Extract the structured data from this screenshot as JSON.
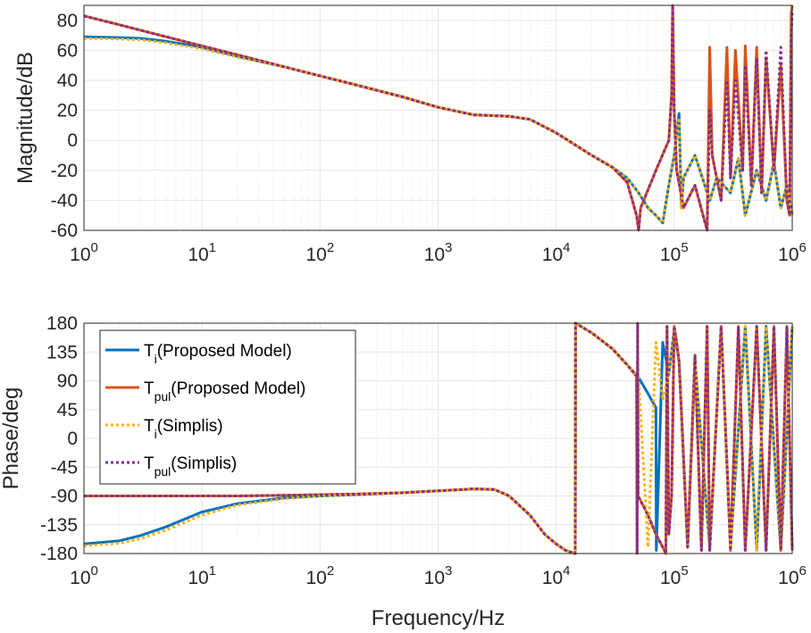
{
  "chart_data": [
    {
      "type": "line",
      "title": "",
      "xlabel": "",
      "ylabel": "Magnitude/dB",
      "xscale": "log",
      "xlim": [
        1,
        1000000
      ],
      "ylim": [
        -60,
        90
      ],
      "yticks": [
        "80",
        "60",
        "40",
        "20",
        "0",
        "-20",
        "-40",
        "-60"
      ],
      "grid": true,
      "series": [
        {
          "name": "Ti(Proposed Model)",
          "color": "#0072bd",
          "style": "solid",
          "x": [
            1,
            2,
            3,
            5,
            10,
            20,
            50,
            100,
            200,
            500,
            1000,
            2000,
            4000,
            6000,
            10000,
            20000,
            30000,
            40000,
            50000,
            60000,
            70000,
            80000,
            90000,
            100000,
            110000,
            115000,
            120000,
            150000,
            200000,
            230000,
            300000,
            350000,
            400000,
            500000,
            600000,
            700000,
            800000,
            900000,
            1000000
          ],
          "y": [
            69,
            68.5,
            68,
            66,
            62,
            56,
            49,
            43,
            37,
            29,
            22,
            17,
            16,
            14,
            5,
            -10,
            -18,
            -25,
            -35,
            -45,
            -50,
            -55,
            -30,
            -10,
            18,
            -45,
            -25,
            -10,
            -40,
            -25,
            -35,
            -12,
            -50,
            -20,
            -40,
            -15,
            -45,
            -30,
            -50
          ]
        },
        {
          "name": "Tpul(Proposed Model)",
          "color": "#d95319",
          "style": "solid",
          "x": [
            1,
            2,
            5,
            10,
            20,
            50,
            100,
            200,
            500,
            1000,
            2000,
            4000,
            6000,
            10000,
            20000,
            30000,
            40000,
            48000,
            50000,
            52000,
            70000,
            90000,
            95000,
            97000,
            100000,
            105000,
            120000,
            150000,
            190000,
            200000,
            210000,
            250000,
            280000,
            300000,
            330000,
            380000,
            400000,
            450000,
            500000,
            550000,
            600000,
            700000,
            800000,
            900000,
            950000,
            980000,
            1000000
          ],
          "y": [
            83,
            77,
            69,
            63,
            57,
            49,
            43,
            37,
            29,
            22,
            17,
            16,
            14,
            5,
            -10,
            -18,
            -28,
            -50,
            -60,
            -45,
            -20,
            0,
            30,
            90,
            20,
            -20,
            -45,
            -30,
            -60,
            62,
            -10,
            -40,
            62,
            -25,
            60,
            -20,
            63,
            -30,
            62,
            -35,
            55,
            -20,
            50,
            -40,
            -50,
            85,
            90
          ]
        },
        {
          "name": "Ti(Simplis)",
          "color": "#ffb000",
          "style": "dotted",
          "x": [
            1,
            2,
            3,
            5,
            10,
            20,
            50,
            100,
            200,
            500,
            1000,
            2000,
            4000,
            6000,
            10000,
            20000,
            30000,
            40000,
            50000,
            60000,
            70000,
            80000,
            90000,
            100000,
            110000,
            115000,
            120000,
            150000,
            200000,
            230000,
            300000,
            350000,
            400000,
            500000,
            600000,
            700000,
            800000,
            900000,
            1000000
          ],
          "y": [
            68,
            67.5,
            67,
            65,
            61,
            55.5,
            49,
            43,
            37,
            29,
            22,
            17,
            16,
            14,
            5,
            -10,
            -18,
            -25,
            -35,
            -45,
            -50,
            -55,
            -30,
            -10,
            15,
            -45,
            -25,
            -10,
            -40,
            -25,
            -35,
            -12,
            -50,
            -20,
            -40,
            -15,
            -45,
            -30,
            -50
          ]
        },
        {
          "name": "Tpul(Simplis)",
          "color": "#7e2f8e",
          "style": "dotted",
          "x": [
            1,
            2,
            5,
            10,
            20,
            50,
            100,
            200,
            500,
            1000,
            2000,
            4000,
            6000,
            10000,
            20000,
            30000,
            40000,
            48000,
            50000,
            52000,
            70000,
            90000,
            95000,
            97000,
            100000,
            105000,
            120000,
            150000,
            190000,
            200000,
            210000,
            250000,
            280000,
            300000,
            330000,
            380000,
            400000,
            450000,
            500000,
            550000,
            600000,
            700000,
            800000,
            900000,
            950000,
            980000,
            1000000
          ],
          "y": [
            83,
            77,
            69,
            63,
            57,
            49,
            43,
            37,
            29,
            22,
            17,
            16,
            14,
            5,
            -10,
            -18,
            -28,
            -50,
            -60,
            -45,
            -20,
            0,
            30,
            90,
            20,
            -20,
            -45,
            -30,
            -60,
            20,
            -10,
            -40,
            40,
            -25,
            40,
            -20,
            50,
            -30,
            55,
            -35,
            60,
            -20,
            62,
            -40,
            -50,
            70,
            85
          ]
        }
      ]
    },
    {
      "type": "line",
      "title": "",
      "xlabel": "Frequency/Hz",
      "ylabel": "Phase/deg",
      "xscale": "log",
      "xlim": [
        1,
        1000000
      ],
      "ylim": [
        -180,
        180
      ],
      "yticks": [
        "180",
        "135",
        "90",
        "45",
        "0",
        "-45",
        "-90",
        "-135",
        "-180"
      ],
      "grid": true,
      "legend_position": "top-left",
      "series": [
        {
          "name": "Ti(Proposed Model)",
          "color": "#0072bd",
          "style": "solid",
          "x": [
            1,
            2,
            3,
            5,
            10,
            20,
            50,
            100,
            200,
            500,
            1000,
            2000,
            3000,
            4000,
            6000,
            8000,
            10000,
            12000,
            14500,
            14600,
            20000,
            30000,
            40000,
            50000,
            60000,
            70000,
            70500,
            80000,
            90000,
            100000,
            110000,
            130000,
            150000,
            200000,
            250000,
            300000,
            400000,
            500000,
            600000,
            800000,
            1000000
          ],
          "y": [
            -165,
            -160,
            -152,
            -138,
            -115,
            -102,
            -93,
            -90,
            -88,
            -85,
            -82,
            -79,
            -80,
            -90,
            -120,
            -150,
            -165,
            -175,
            -180,
            180,
            165,
            140,
            115,
            95,
            70,
            48,
            -175,
            150,
            100,
            170,
            120,
            -170,
            120,
            -170,
            175,
            -170,
            175,
            -175,
            175,
            -175,
            175
          ]
        },
        {
          "name": "Tpul(Proposed Model)",
          "color": "#d95319",
          "style": "solid",
          "x": [
            1,
            2,
            5,
            10,
            20,
            50,
            100,
            200,
            500,
            1000,
            2000,
            3000,
            4000,
            6000,
            8000,
            10000,
            12000,
            14500,
            14600,
            20000,
            30000,
            40000,
            48000,
            48500,
            49000,
            49500,
            60000,
            70000,
            80000,
            85000,
            87000,
            90000,
            95000,
            100000,
            105000,
            110000,
            130000,
            150000,
            170000,
            190000,
            200000,
            250000,
            300000,
            350000,
            400000,
            500000,
            600000,
            700000,
            800000,
            900000,
            1000000
          ],
          "y": [
            -90,
            -90,
            -90,
            -90,
            -90,
            -89,
            -88,
            -87,
            -85,
            -82,
            -79,
            -80,
            -90,
            -120,
            -150,
            -165,
            -175,
            -180,
            180,
            165,
            140,
            115,
            97,
            -180,
            180,
            -90,
            -120,
            -150,
            -170,
            -180,
            175,
            -150,
            -90,
            175,
            150,
            120,
            -170,
            130,
            -175,
            175,
            -175,
            175,
            -175,
            175,
            -175,
            175,
            -175,
            175,
            -175,
            175,
            -175
          ]
        },
        {
          "name": "Ti(Simplis)",
          "color": "#ffb000",
          "style": "dotted",
          "x": [
            1,
            2,
            3,
            5,
            10,
            20,
            50,
            100,
            200,
            500,
            1000,
            2000,
            3000,
            4000,
            6000,
            8000,
            10000,
            12000,
            14500,
            14600,
            20000,
            30000,
            40000,
            50000,
            60000,
            70000,
            80000,
            90000,
            100000,
            110000,
            130000,
            150000,
            200000,
            250000,
            300000,
            400000,
            500000,
            600000,
            800000,
            1000000
          ],
          "y": [
            -168,
            -164,
            -157,
            -143,
            -120,
            -104,
            -94,
            -90,
            -88,
            -85,
            -82,
            -79,
            -80,
            -90,
            -120,
            -150,
            -165,
            -175,
            -180,
            180,
            165,
            140,
            115,
            95,
            -170,
            150,
            60,
            100,
            170,
            120,
            -170,
            120,
            -170,
            175,
            -170,
            175,
            -175,
            175,
            -175,
            175
          ]
        },
        {
          "name": "Tpul(Simplis)",
          "color": "#7e2f8e",
          "style": "dotted",
          "x": [
            1,
            2,
            5,
            10,
            20,
            50,
            100,
            200,
            500,
            1000,
            2000,
            3000,
            4000,
            6000,
            8000,
            10000,
            12000,
            14500,
            14600,
            20000,
            30000,
            40000,
            48000,
            48500,
            49000,
            49500,
            60000,
            70000,
            80000,
            85000,
            87000,
            90000,
            95000,
            100000,
            105000,
            110000,
            130000,
            150000,
            170000,
            190000,
            200000,
            250000,
            300000,
            350000,
            400000,
            500000,
            600000,
            700000,
            800000,
            900000,
            1000000
          ],
          "y": [
            -90,
            -90,
            -90,
            -90,
            -90,
            -89,
            -88,
            -87,
            -85,
            -82,
            -79,
            -80,
            -90,
            -120,
            -150,
            -165,
            -175,
            -180,
            180,
            165,
            140,
            115,
            97,
            -180,
            180,
            -90,
            -120,
            -150,
            -170,
            -180,
            175,
            -150,
            -90,
            175,
            150,
            120,
            -170,
            130,
            -175,
            175,
            -175,
            175,
            -175,
            175,
            -175,
            175,
            -175,
            175,
            -175,
            175,
            -175
          ]
        }
      ]
    }
  ],
  "xticks": [
    {
      "base": "10",
      "exp": "0"
    },
    {
      "base": "10",
      "exp": "1"
    },
    {
      "base": "10",
      "exp": "2"
    },
    {
      "base": "10",
      "exp": "3"
    },
    {
      "base": "10",
      "exp": "4"
    },
    {
      "base": "10",
      "exp": "5"
    },
    {
      "base": "10",
      "exp": "6"
    }
  ],
  "legend": [
    {
      "main": "T",
      "sub": "i",
      "rest": "(Proposed Model)",
      "color": "#0072bd",
      "style": "solid"
    },
    {
      "main": "T",
      "sub": "pul",
      "rest": "(Proposed Model)",
      "color": "#d95319",
      "style": "solid"
    },
    {
      "main": "T",
      "sub": "i",
      "rest": "(Simplis)",
      "color": "#ffb000",
      "style": "dotted"
    },
    {
      "main": "T",
      "sub": "pul",
      "rest": "(Simplis)",
      "color": "#7e2f8e",
      "style": "dotted"
    }
  ],
  "colors": {
    "grid": "#e6e6e6",
    "axis": "#262626",
    "background": "#ffffff"
  }
}
